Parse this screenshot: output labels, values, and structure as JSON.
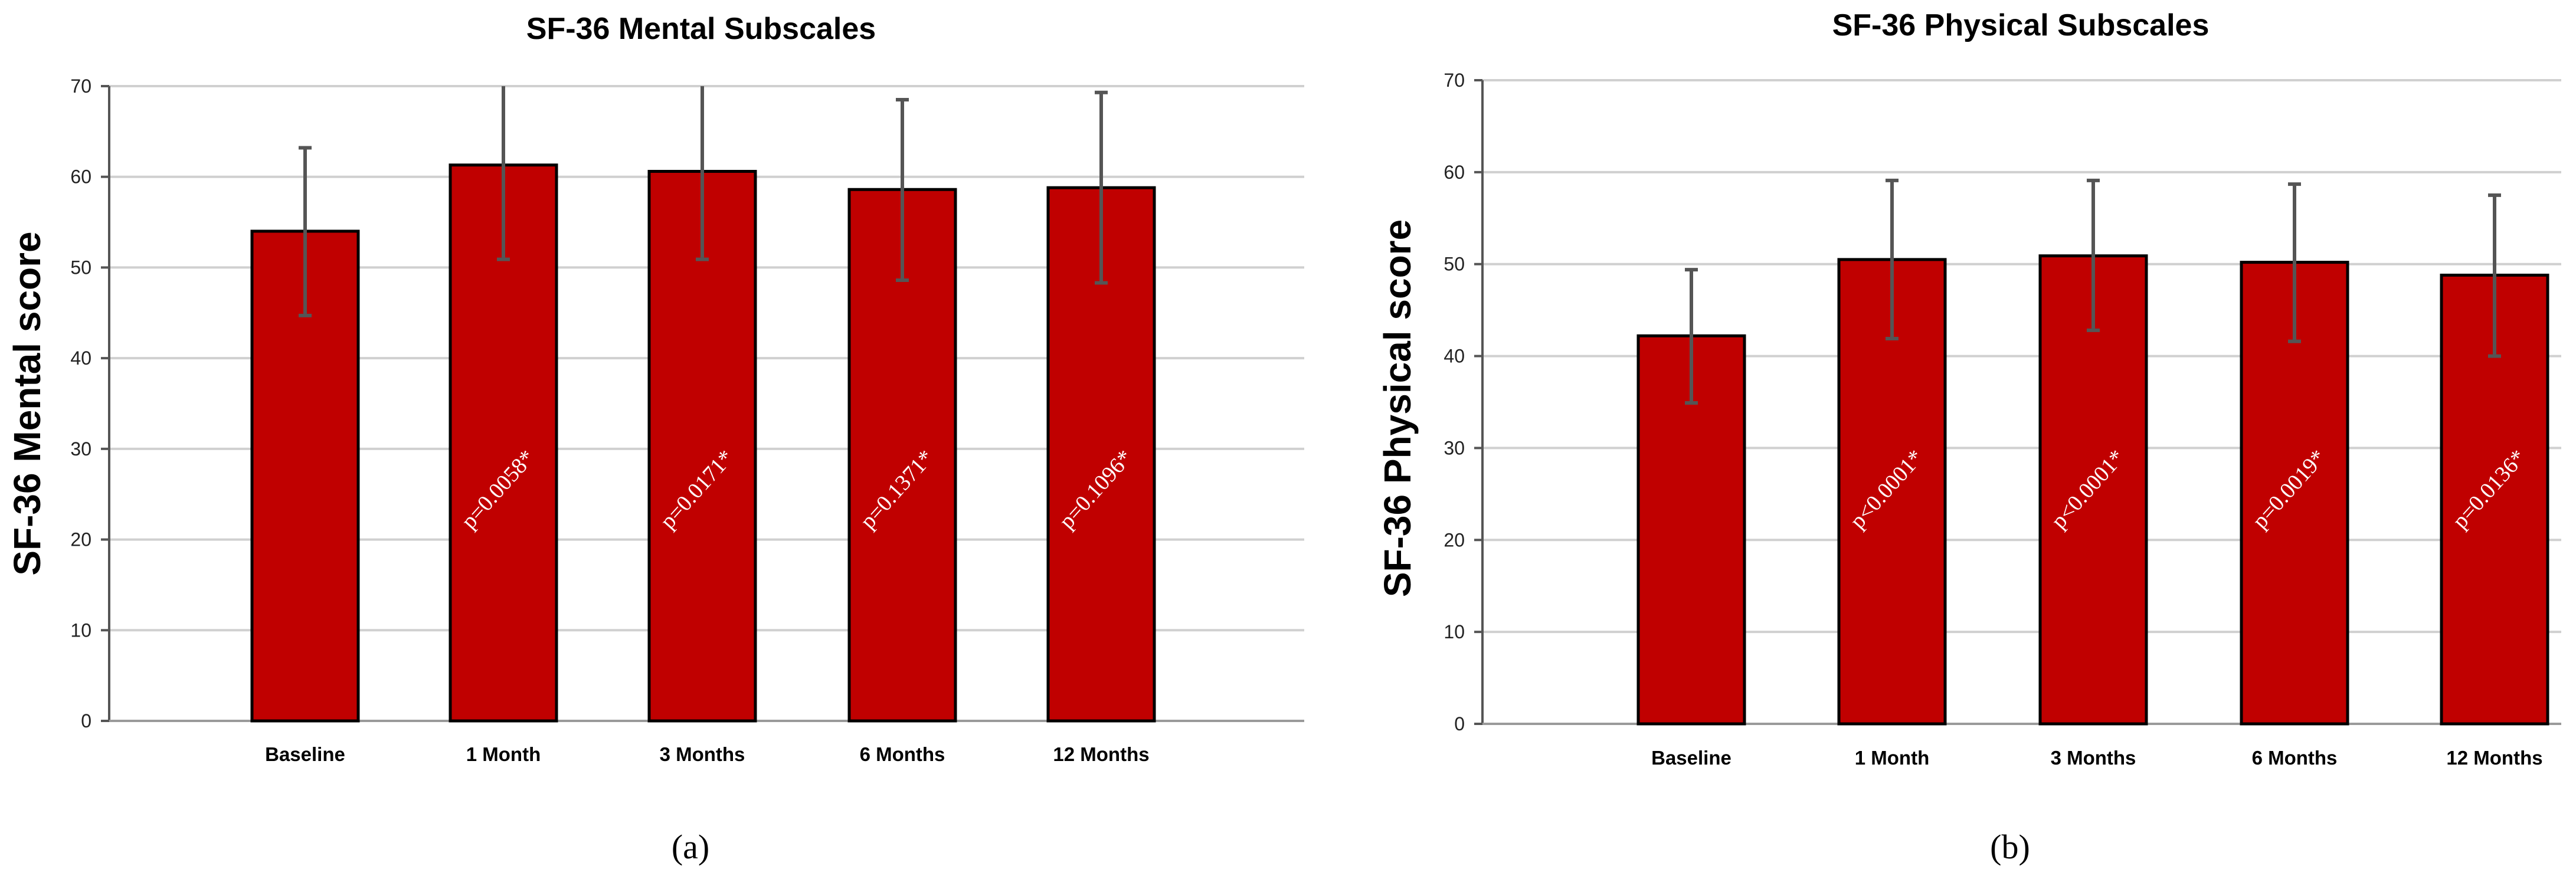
{
  "colors": {
    "bar": "#c00000",
    "bar_stroke": "#000000",
    "grid": "#d0d0d0",
    "error_bar": "#555555",
    "annotation": "#ffffff"
  },
  "chart_data": [
    {
      "type": "bar",
      "panel_label": "(a)",
      "title": "SF-36 Mental Subscales",
      "xlabel": "",
      "ylabel": "SF-36 Mental score",
      "ylim": [
        0,
        70
      ],
      "yticks": [
        0,
        10,
        20,
        30,
        40,
        50,
        60,
        70
      ],
      "grid": true,
      "categories": [
        "Baseline",
        "1 Month",
        "3 Months",
        "6 Months",
        "12 Months"
      ],
      "values": [
        54,
        61.3,
        60.6,
        58.6,
        58.8
      ],
      "error_upper": [
        63.2,
        71.8,
        70.4,
        68.5,
        69.3
      ],
      "error_lower": [
        44.7,
        50.9,
        50.9,
        48.6,
        48.3
      ],
      "annotations": [
        "",
        "p=0.0058*",
        "p=0.0171*",
        "p=0.1371*",
        "p=0.1096*"
      ]
    },
    {
      "type": "bar",
      "panel_label": "(b)",
      "title": "SF-36 Physical Subscales",
      "xlabel": "",
      "ylabel": "SF-36 Physical score",
      "ylim": [
        0,
        70
      ],
      "yticks": [
        0,
        10,
        20,
        30,
        40,
        50,
        60,
        70
      ],
      "grid": true,
      "categories": [
        "Baseline",
        "1 Month",
        "3 Months",
        "6 Months",
        "12 Months"
      ],
      "values": [
        42.2,
        50.5,
        50.9,
        50.2,
        48.8
      ],
      "error_upper": [
        49.4,
        59.1,
        59.1,
        58.7,
        57.5
      ],
      "error_lower": [
        34.9,
        41.9,
        42.8,
        41.6,
        40
      ],
      "annotations": [
        "",
        "p<0.0001*",
        "p<0.0001*",
        "p=0.0019*",
        "p=0.0136*"
      ]
    }
  ]
}
